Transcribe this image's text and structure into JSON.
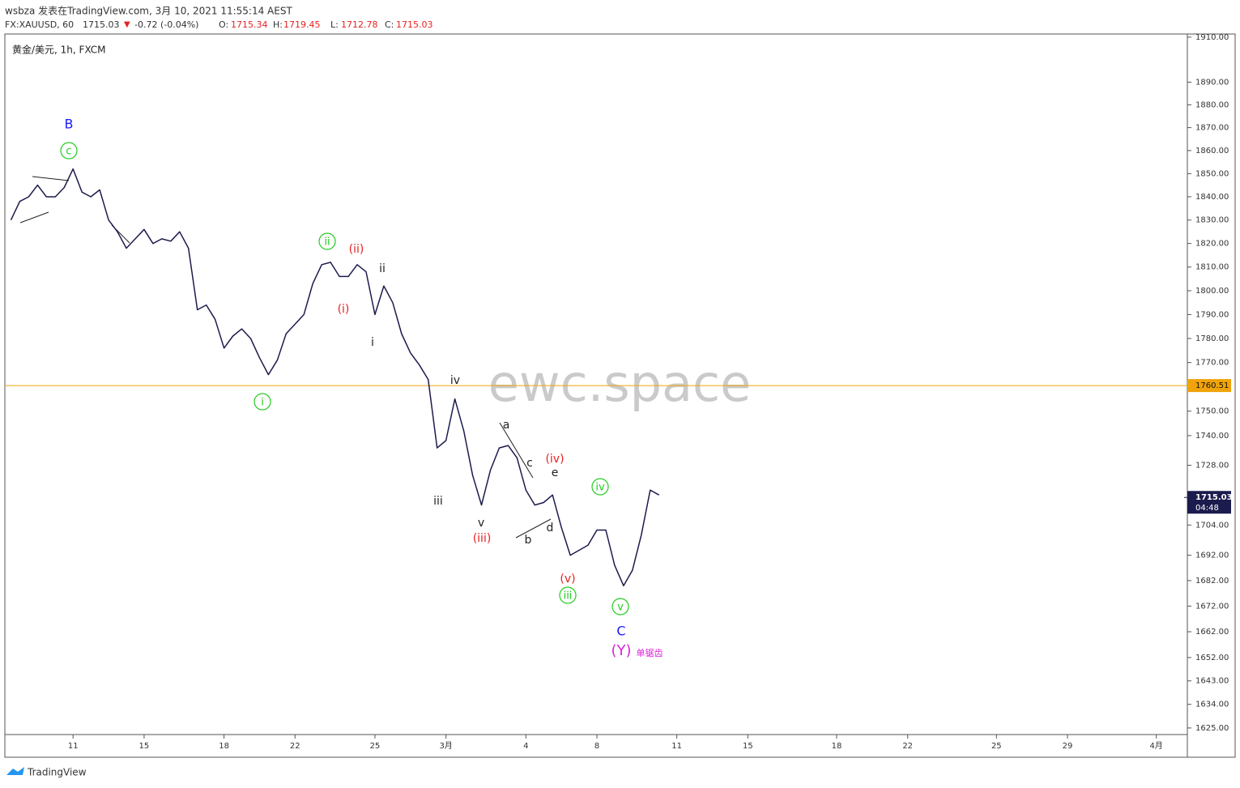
{
  "header": {
    "author_line": "wsbza 发表在TradingView.com, 3月 10, 2021 11:55:14 AEST",
    "symbol": "FX:XAUUSD, 60",
    "last": "1715.03",
    "arrow": "▼",
    "change": "-0.72 (-0.04%)",
    "o_label": "O:",
    "open": "1715.34",
    "h_label": "H:",
    "high": "1719.45",
    "l_label": "L:",
    "low": "1712.78",
    "c_label": "C:",
    "close": "1715.03"
  },
  "legend": "黄金/美元, 1h, FXCM",
  "watermark": "ewc.space",
  "footer": "TradingView",
  "chart_data": {
    "type": "line",
    "color": "#1c1b4d",
    "log": true,
    "ylim": [
      1622.5,
      1911.4
    ],
    "yticks": [
      {
        "value": 1910,
        "label": "1910.00"
      },
      {
        "value": 1890,
        "label": "1890.00"
      },
      {
        "value": 1880,
        "label": "1880.00"
      },
      {
        "value": 1870,
        "label": "1870.00"
      },
      {
        "value": 1860,
        "label": "1860.00"
      },
      {
        "value": 1850,
        "label": "1850.00"
      },
      {
        "value": 1840,
        "label": "1840.00"
      },
      {
        "value": 1830,
        "label": "1830.00"
      },
      {
        "value": 1820,
        "label": "1820.00"
      },
      {
        "value": 1810,
        "label": "1810.00"
      },
      {
        "value": 1800,
        "label": "1800.00"
      },
      {
        "value": 1790,
        "label": "1790.00"
      },
      {
        "value": 1780,
        "label": "1780.00"
      },
      {
        "value": 1770,
        "label": "1770.00"
      },
      {
        "value": 1750,
        "label": "1750.00"
      },
      {
        "value": 1740,
        "label": "1740.00"
      },
      {
        "value": 1728,
        "label": "1728.00"
      },
      {
        "value": 1704,
        "label": "1704.00"
      },
      {
        "value": 1692,
        "label": "1692.00"
      },
      {
        "value": 1682,
        "label": "1682.00"
      },
      {
        "value": 1672,
        "label": "1672.00"
      },
      {
        "value": 1662,
        "label": "1662.00"
      },
      {
        "value": 1652,
        "label": "1652.00"
      },
      {
        "value": 1643,
        "label": "1643.00"
      },
      {
        "value": 1634,
        "label": "1634.00"
      },
      {
        "value": 1625,
        "label": "1625.00"
      }
    ],
    "categories": [
      null,
      null,
      null,
      null,
      null,
      null,
      null,
      "11",
      null,
      null,
      null,
      null,
      null,
      null,
      null,
      "15",
      null,
      null,
      null,
      null,
      null,
      null,
      null,
      null,
      "18",
      null,
      null,
      null,
      null,
      null,
      null,
      null,
      "22",
      null,
      null,
      null,
      null,
      null,
      null,
      null,
      null,
      "25",
      null,
      null,
      null,
      null,
      null,
      null,
      null,
      "3月",
      null,
      null,
      null,
      null,
      null,
      null,
      null,
      null,
      "4",
      null,
      null,
      null,
      null,
      null,
      null,
      null,
      "8",
      null,
      null,
      null,
      null,
      null,
      null,
      null,
      null,
      "11",
      null,
      null,
      null,
      null,
      null,
      null,
      null,
      "15",
      null,
      null,
      null,
      null,
      null,
      null,
      null,
      null,
      null,
      "18",
      null,
      null,
      null,
      null,
      null,
      null,
      null,
      "22",
      null,
      null,
      null,
      null,
      null,
      null,
      null,
      null,
      null,
      "25",
      null,
      null,
      null,
      null,
      null,
      null,
      null,
      "29",
      null,
      null,
      null,
      null,
      null,
      null,
      null,
      null,
      null,
      "4月",
      null,
      null,
      null
    ],
    "values": [
      1830,
      1838,
      1840,
      1845,
      1840,
      1840,
      1844,
      1852,
      1842,
      1840,
      1843,
      1830,
      1825,
      1818,
      1822,
      1826,
      1820,
      1822,
      1821,
      1825,
      1818,
      1792,
      1794,
      1788,
      1776,
      1781,
      1784,
      1780,
      1772,
      1765,
      1771,
      1782,
      1786,
      1790,
      1803,
      1811,
      1812,
      1806,
      1806,
      1811,
      1808,
      1790,
      1802,
      1795,
      1782,
      1774,
      1769,
      1763,
      1735,
      1738,
      1755,
      1742,
      1724,
      1712,
      1726,
      1735,
      1736,
      1731,
      1718,
      1712,
      1713,
      1716,
      1703,
      1692,
      1694,
      1696,
      1702,
      1702,
      1688,
      1680,
      1686,
      1700,
      1718,
      1716,
      null,
      null,
      null,
      null,
      null,
      null,
      null,
      null,
      null,
      null,
      null,
      null,
      null,
      null,
      null,
      null,
      null,
      null,
      null,
      null,
      null,
      null,
      null,
      null,
      null,
      null,
      null,
      null,
      null,
      null,
      null,
      null,
      null,
      null,
      null,
      null,
      null,
      null,
      null,
      null,
      null,
      null,
      null,
      null,
      null,
      null,
      null,
      null,
      null,
      null,
      null,
      null,
      null,
      null,
      null,
      null,
      null,
      null,
      null
    ],
    "hline": {
      "value": 1760.51,
      "color": "#f0a30a"
    },
    "last_price": 1715.03,
    "countdown": "04:48",
    "annotations": [
      {
        "text": "B",
        "color": "#1a1aff"
      },
      {
        "text": "c",
        "color": "#22cc22"
      },
      {
        "text": "ii",
        "color": "#22cc22"
      },
      {
        "text": "(ii)",
        "color": "#e52222"
      },
      {
        "text": "ii",
        "color": "#222222"
      },
      {
        "text": "(i)",
        "color": "#e52222"
      },
      {
        "text": "i",
        "color": "#222222"
      },
      {
        "text": "i",
        "color": "#22cc22"
      },
      {
        "text": "iv",
        "color": "#222222"
      },
      {
        "text": "iii",
        "color": "#222222"
      },
      {
        "text": "v",
        "color": "#222222"
      },
      {
        "text": "(iii)",
        "color": "#e52222"
      },
      {
        "text": "a",
        "color": "#222222"
      },
      {
        "text": "c",
        "color": "#222222"
      },
      {
        "text": "e",
        "color": "#222222"
      },
      {
        "text": "(iv)",
        "color": "#e52222"
      },
      {
        "text": "b",
        "color": "#222222"
      },
      {
        "text": "d",
        "color": "#222222"
      },
      {
        "text": "iv",
        "color": "#22cc22"
      },
      {
        "text": "(v)",
        "color": "#e52222"
      },
      {
        "text": "iii",
        "color": "#22cc22"
      },
      {
        "text": "v",
        "color": "#22cc22"
      },
      {
        "text": "C",
        "color": "#1a1aff"
      },
      {
        "text": "(Y)",
        "color": "#dd22dd"
      },
      {
        "text": "单锯齿",
        "color": "#dd22dd"
      }
    ]
  }
}
